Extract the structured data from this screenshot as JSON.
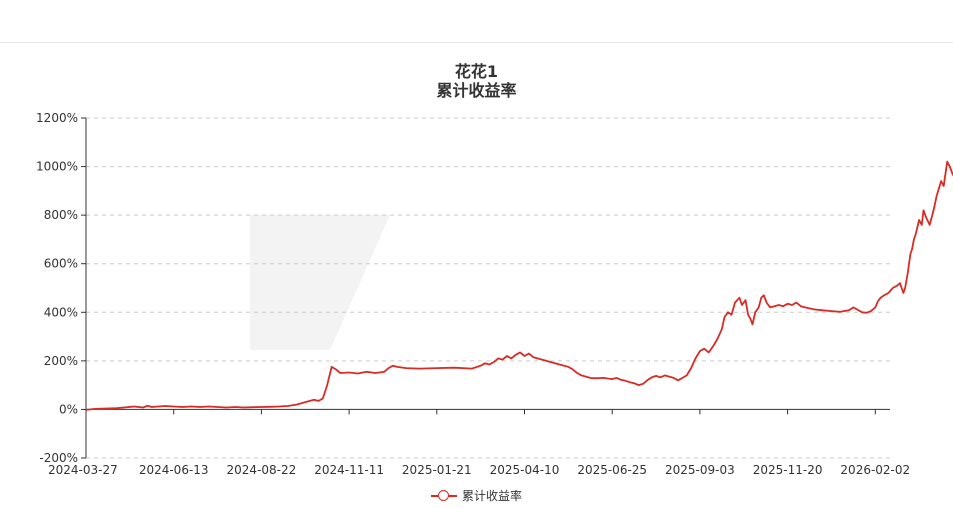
{
  "chart_data": {
    "type": "line",
    "title": "花花1",
    "subtitle": "累计收益率",
    "xlabel": "",
    "ylabel": "",
    "ylim": [
      -200,
      1200
    ],
    "yticks": [
      "-200%",
      "0%",
      "200%",
      "400%",
      "600%",
      "800%",
      "1000%",
      "1200%"
    ],
    "xticks": [
      "2024-03-27",
      "2024-06-13",
      "2024-08-22",
      "2024-11-11",
      "2025-01-21",
      "2025-04-10",
      "2025-06-25",
      "2025-09-03",
      "2025-11-20",
      "2026-02-02"
    ],
    "grid": true,
    "legend_position": "bottom",
    "series": [
      {
        "name": "累计收益率",
        "color": "#d92b24",
        "points": [
          [
            0,
            -2
          ],
          [
            0.1,
            2
          ],
          [
            0.35,
            5
          ],
          [
            0.55,
            12
          ],
          [
            0.65,
            8
          ],
          [
            0.7,
            15
          ],
          [
            0.75,
            10
          ],
          [
            0.9,
            14
          ],
          [
            1.0,
            12
          ],
          [
            1.1,
            10
          ],
          [
            1.2,
            12
          ],
          [
            1.3,
            10
          ],
          [
            1.4,
            12
          ],
          [
            1.5,
            10
          ],
          [
            1.6,
            8
          ],
          [
            1.7,
            10
          ],
          [
            1.8,
            8
          ],
          [
            1.9,
            9
          ],
          [
            2.0,
            10
          ],
          [
            2.1,
            11
          ],
          [
            2.2,
            12
          ],
          [
            2.3,
            14
          ],
          [
            2.4,
            20
          ],
          [
            2.5,
            30
          ],
          [
            2.6,
            40
          ],
          [
            2.65,
            35
          ],
          [
            2.7,
            45
          ],
          [
            2.75,
            100
          ],
          [
            2.8,
            175
          ],
          [
            2.85,
            165
          ],
          [
            2.9,
            150
          ],
          [
            3.0,
            152
          ],
          [
            3.1,
            148
          ],
          [
            3.2,
            155
          ],
          [
            3.3,
            150
          ],
          [
            3.4,
            155
          ],
          [
            3.45,
            170
          ],
          [
            3.5,
            180
          ],
          [
            3.55,
            175
          ],
          [
            3.65,
            170
          ],
          [
            3.8,
            168
          ],
          [
            4.0,
            170
          ],
          [
            4.2,
            172
          ],
          [
            4.4,
            168
          ],
          [
            4.5,
            180
          ],
          [
            4.55,
            190
          ],
          [
            4.6,
            185
          ],
          [
            4.65,
            195
          ],
          [
            4.7,
            210
          ],
          [
            4.75,
            205
          ],
          [
            4.8,
            220
          ],
          [
            4.85,
            210
          ],
          [
            4.9,
            225
          ],
          [
            4.95,
            235
          ],
          [
            5.0,
            220
          ],
          [
            5.05,
            230
          ],
          [
            5.1,
            215
          ],
          [
            5.2,
            205
          ],
          [
            5.3,
            195
          ],
          [
            5.4,
            185
          ],
          [
            5.5,
            175
          ],
          [
            5.55,
            165
          ],
          [
            5.6,
            150
          ],
          [
            5.65,
            140
          ],
          [
            5.7,
            135
          ],
          [
            5.75,
            130
          ],
          [
            5.8,
            128
          ],
          [
            5.9,
            130
          ],
          [
            6.0,
            125
          ],
          [
            6.05,
            130
          ],
          [
            6.1,
            122
          ],
          [
            6.15,
            118
          ],
          [
            6.2,
            112
          ],
          [
            6.25,
            108
          ],
          [
            6.3,
            100
          ],
          [
            6.35,
            105
          ],
          [
            6.4,
            120
          ],
          [
            6.45,
            132
          ],
          [
            6.5,
            138
          ],
          [
            6.55,
            132
          ],
          [
            6.6,
            140
          ],
          [
            6.7,
            130
          ],
          [
            6.75,
            120
          ],
          [
            6.8,
            130
          ],
          [
            6.85,
            140
          ],
          [
            6.9,
            170
          ],
          [
            6.95,
            210
          ],
          [
            7.0,
            240
          ],
          [
            7.05,
            250
          ],
          [
            7.1,
            235
          ],
          [
            7.15,
            260
          ],
          [
            7.2,
            290
          ],
          [
            7.25,
            330
          ],
          [
            7.28,
            380
          ],
          [
            7.32,
            400
          ],
          [
            7.36,
            390
          ],
          [
            7.4,
            440
          ],
          [
            7.45,
            460
          ],
          [
            7.48,
            430
          ],
          [
            7.52,
            450
          ],
          [
            7.55,
            390
          ],
          [
            7.58,
            370
          ],
          [
            7.6,
            350
          ],
          [
            7.63,
            400
          ],
          [
            7.67,
            420
          ],
          [
            7.7,
            460
          ],
          [
            7.73,
            470
          ],
          [
            7.76,
            440
          ],
          [
            7.8,
            420
          ],
          [
            7.85,
            425
          ],
          [
            7.9,
            430
          ],
          [
            7.95,
            425
          ],
          [
            8.0,
            435
          ],
          [
            8.05,
            430
          ],
          [
            8.1,
            440
          ],
          [
            8.15,
            425
          ],
          [
            8.2,
            420
          ],
          [
            8.3,
            412
          ],
          [
            8.4,
            408
          ],
          [
            8.5,
            405
          ],
          [
            8.6,
            402
          ],
          [
            8.7,
            408
          ],
          [
            8.75,
            420
          ],
          [
            8.8,
            410
          ],
          [
            8.85,
            400
          ],
          [
            8.9,
            398
          ],
          [
            8.95,
            405
          ],
          [
            9.0,
            420
          ],
          [
            9.03,
            445
          ],
          [
            9.06,
            460
          ],
          [
            9.1,
            470
          ],
          [
            9.15,
            480
          ],
          [
            9.2,
            500
          ],
          [
            9.25,
            510
          ],
          [
            9.28,
            520
          ],
          [
            9.3,
            500
          ],
          [
            9.32,
            480
          ],
          [
            9.34,
            500
          ],
          [
            9.37,
            560
          ],
          [
            9.4,
            640
          ],
          [
            9.42,
            660
          ],
          [
            9.44,
            700
          ],
          [
            9.46,
            720
          ],
          [
            9.5,
            780
          ],
          [
            9.53,
            760
          ],
          [
            9.55,
            820
          ],
          [
            9.58,
            790
          ],
          [
            9.62,
            760
          ],
          [
            9.65,
            800
          ],
          [
            9.67,
            830
          ],
          [
            9.7,
            880
          ],
          [
            9.75,
            940
          ],
          [
            9.78,
            920
          ],
          [
            9.82,
            1020
          ],
          [
            9.85,
            1000
          ],
          [
            9.88,
            970
          ],
          [
            9.92,
            945
          ],
          [
            9.96,
            925
          ],
          [
            10.0,
            915
          ],
          [
            10.05,
            920
          ],
          [
            10.1,
            1000
          ],
          [
            10.15,
            950
          ]
        ]
      }
    ]
  }
}
